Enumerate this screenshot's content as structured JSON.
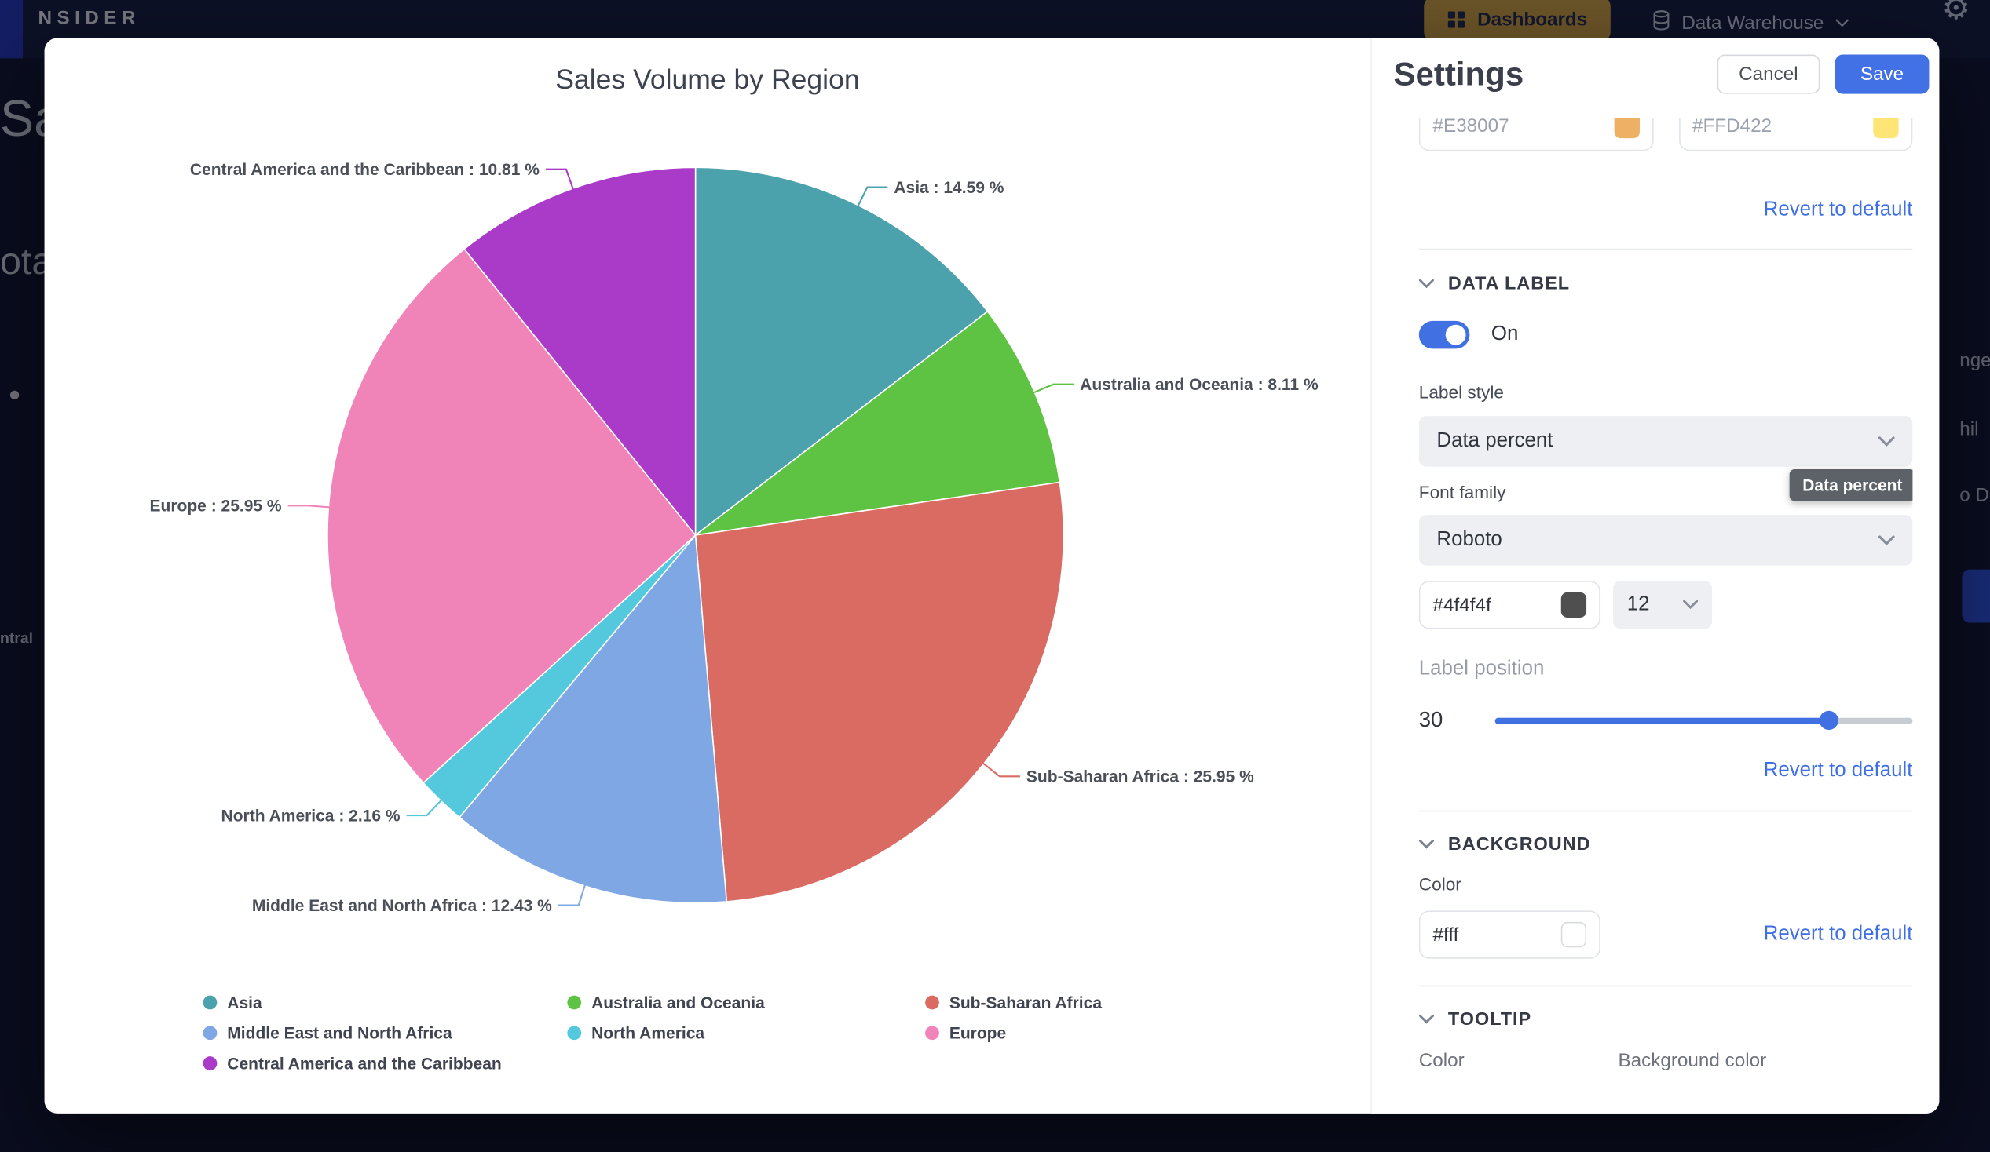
{
  "topbar": {
    "logo": "NSIDER",
    "dashboards_label": "Dashboards",
    "data_warehouse_label": "Data Warehouse"
  },
  "background_fragments": {
    "heading": "Sal",
    "subheading": "ota",
    "small_left": "ntral",
    "right_a": "nge",
    "right_b": "hil",
    "right_c": "o D"
  },
  "colors": {
    "accent_blue": "#4070E2",
    "save_button": "#4271E6",
    "dashboards_button": "#E7B13F",
    "modal_background": "#ffffff"
  },
  "chart_data": {
    "type": "pie",
    "title": "Sales Volume by Region",
    "slices": [
      {
        "name": "Asia",
        "value": 14.59,
        "color": "#4BA2AC"
      },
      {
        "name": "Australia and Oceania",
        "value": 8.11,
        "color": "#5EC342"
      },
      {
        "name": "Sub-Saharan Africa",
        "value": 25.95,
        "color": "#D96B63"
      },
      {
        "name": "Middle East and North Africa",
        "value": 12.43,
        "color": "#7FA7E4"
      },
      {
        "name": "North America",
        "value": 2.16,
        "color": "#54C8DC"
      },
      {
        "name": "Europe",
        "value": 25.95,
        "color": "#F084B8"
      },
      {
        "name": "Central America and the Caribbean",
        "value": 10.81,
        "color": "#AA3BC8"
      }
    ],
    "legend_order": [
      "Asia",
      "Australia and Oceania",
      "Sub-Saharan Africa",
      "Middle East and North Africa",
      "North America",
      "Europe",
      "Central America and the Caribbean"
    ],
    "label_format": "name : value %",
    "legend_position": "bottom"
  },
  "settings": {
    "title": "Settings",
    "cancel_label": "Cancel",
    "save_label": "Save",
    "revert_label": "Revert to default",
    "series_colors": {
      "input1": "#E38007",
      "input2": "#FFD422"
    },
    "data_label": {
      "section_title": "DATA LABEL",
      "toggle_state_label": "On",
      "label_style_label": "Label style",
      "label_style_value": "Data percent",
      "font_family_label": "Font family",
      "font_family_value": "Roboto",
      "tooltip_text": "Data percent",
      "font_color_value": "#4f4f4f",
      "font_size_value": "12",
      "label_position_label": "Label position",
      "label_position_value": "30",
      "label_position_fill": "80%"
    },
    "background": {
      "section_title": "BACKGROUND",
      "color_label": "Color",
      "color_value": "#fff"
    },
    "tooltip": {
      "section_title": "TOOLTIP",
      "color_label": "Color",
      "background_color_label": "Background color"
    }
  }
}
